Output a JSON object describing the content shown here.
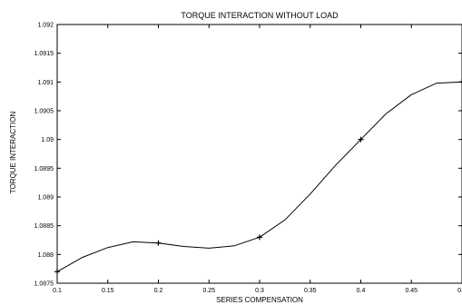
{
  "chart_data": {
    "type": "line",
    "title": "TORQUE INTERACTION WITHOUT LOAD",
    "xlabel": "SERIES COMPENSATION",
    "ylabel": "TORQUE INTERACTION",
    "xlim": [
      0.1,
      0.5
    ],
    "ylim": [
      1.0875,
      1.092
    ],
    "x_ticks": [
      "0.1",
      "0.15",
      "0.2",
      "0.25",
      "0.3",
      "0.35",
      "0.4",
      "0.45",
      "0.5"
    ],
    "y_ticks": [
      "1.0875",
      "1.088",
      "1.0885",
      "1.089",
      "1.0895",
      "1.09",
      "1.0905",
      "1.091",
      "1.0915",
      "1.092"
    ],
    "grid": false,
    "series": [
      {
        "marker": "+",
        "color": "#000000",
        "points": [
          {
            "x": 0.1,
            "y": 1.0877
          },
          {
            "x": 0.2,
            "y": 1.0882
          },
          {
            "x": 0.3,
            "y": 1.0883
          },
          {
            "x": 0.4,
            "y": 1.09
          },
          {
            "x": 0.5,
            "y": 1.091
          }
        ],
        "curve": [
          {
            "x": 0.1,
            "y": 1.0877
          },
          {
            "x": 0.125,
            "y": 1.08795
          },
          {
            "x": 0.15,
            "y": 1.08812
          },
          {
            "x": 0.175,
            "y": 1.08822
          },
          {
            "x": 0.2,
            "y": 1.0882
          },
          {
            "x": 0.225,
            "y": 1.08814
          },
          {
            "x": 0.25,
            "y": 1.08811
          },
          {
            "x": 0.275,
            "y": 1.08815
          },
          {
            "x": 0.3,
            "y": 1.0883
          },
          {
            "x": 0.325,
            "y": 1.0886
          },
          {
            "x": 0.35,
            "y": 1.08905
          },
          {
            "x": 0.375,
            "y": 1.08955
          },
          {
            "x": 0.4,
            "y": 1.09
          },
          {
            "x": 0.425,
            "y": 1.09045
          },
          {
            "x": 0.45,
            "y": 1.09078
          },
          {
            "x": 0.475,
            "y": 1.09098
          },
          {
            "x": 0.5,
            "y": 1.091
          }
        ]
      }
    ]
  }
}
